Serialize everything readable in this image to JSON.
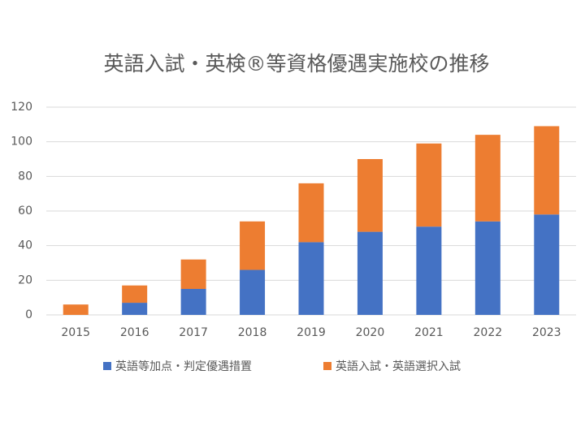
{
  "chart_data": {
    "type": "stacked_bar",
    "title": "英語入試・英検®等資格優遇実施校の推移",
    "categories": [
      "2015",
      "2016",
      "2017",
      "2018",
      "2019",
      "2020",
      "2021",
      "2022",
      "2023"
    ],
    "series": [
      {
        "name": "英語等加点・判定優遇措置",
        "color": "#4472c4",
        "values": [
          0,
          7,
          15,
          26,
          42,
          48,
          51,
          54,
          58
        ]
      },
      {
        "name": "英語入試・英語選択入試",
        "color": "#ed7d31",
        "values": [
          6,
          10,
          17,
          28,
          34,
          42,
          48,
          50,
          51
        ]
      }
    ],
    "ylim": [
      0,
      120
    ],
    "yticks": [
      0,
      20,
      40,
      60,
      80,
      100,
      120
    ],
    "grid": true,
    "legend": "bottom"
  }
}
